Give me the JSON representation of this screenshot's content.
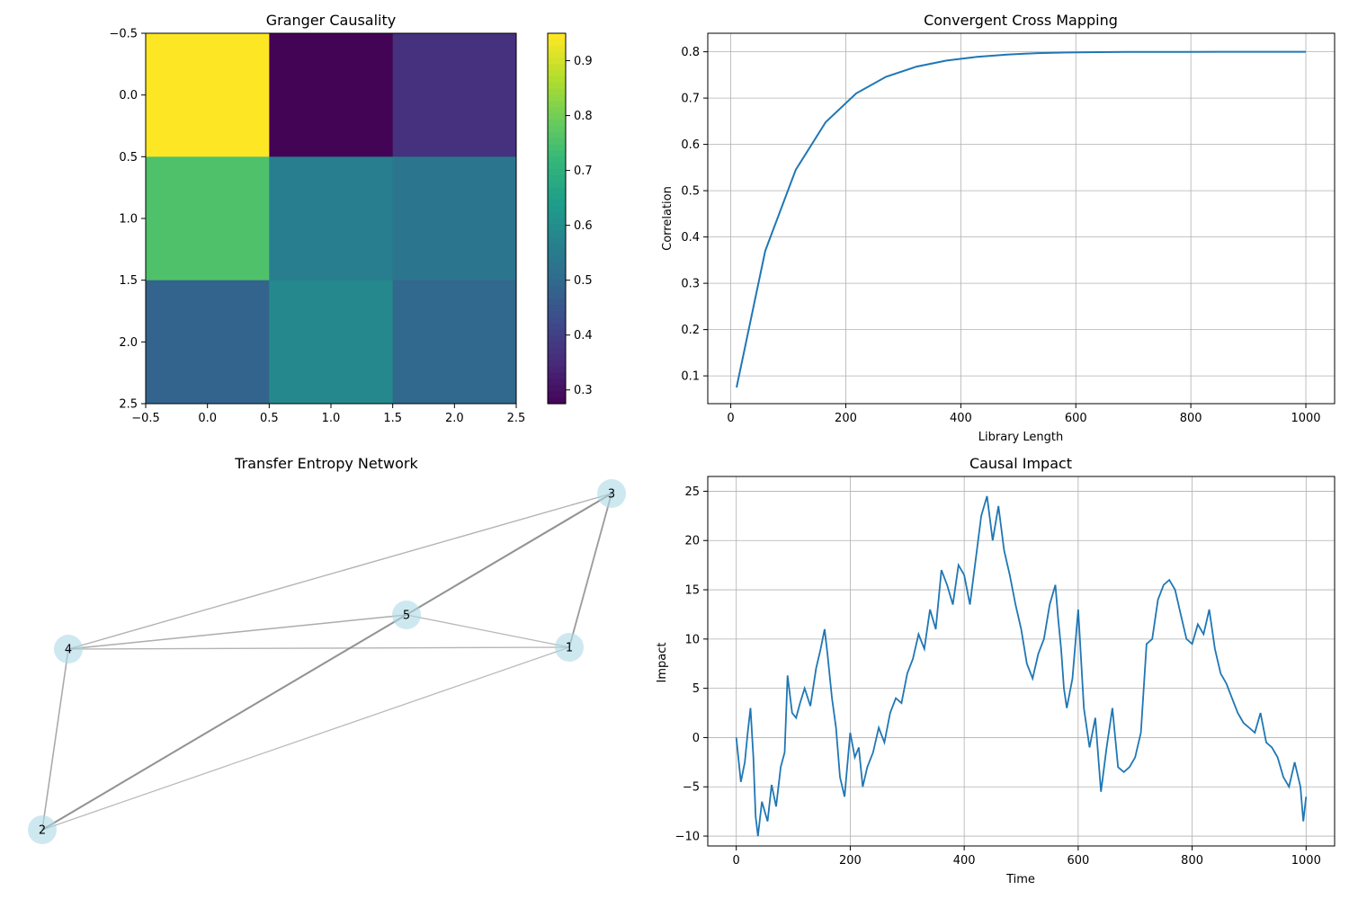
{
  "chart_data": [
    {
      "type": "heatmap",
      "title": "Granger Causality",
      "xlim": [
        -0.5,
        2.5
      ],
      "ylim": [
        2.5,
        -0.5
      ],
      "xticks": [
        "−0.5",
        "0.0",
        "0.5",
        "1.0",
        "1.5",
        "2.0",
        "2.5"
      ],
      "yticks": [
        "−0.5",
        "0.0",
        "0.5",
        "1.0",
        "1.5",
        "2.0",
        "2.5"
      ],
      "colormap": "viridis",
      "colorbar": {
        "min": 0.275,
        "max": 0.95,
        "ticks": [
          "0.3",
          "0.4",
          "0.5",
          "0.6",
          "0.7",
          "0.8",
          "0.9"
        ]
      },
      "values": [
        [
          0.95,
          0.28,
          0.37
        ],
        [
          0.76,
          0.56,
          0.54
        ],
        [
          0.49,
          0.59,
          0.5
        ]
      ]
    },
    {
      "type": "line",
      "title": "Convergent Cross Mapping",
      "xlabel": "Library Length",
      "ylabel": "Correlation",
      "xlim": [
        -40,
        1050
      ],
      "ylim": [
        0.04,
        0.84
      ],
      "grid": true,
      "xticks": [
        "0",
        "200",
        "400",
        "600",
        "800",
        "1000"
      ],
      "yticks": [
        "0.1",
        "0.2",
        "0.3",
        "0.4",
        "0.5",
        "0.6",
        "0.7",
        "0.8"
      ],
      "color": "#1f77b4",
      "x": [
        10,
        60,
        113,
        165,
        218,
        270,
        323,
        375,
        428,
        480,
        533,
        585,
        638,
        690,
        743,
        795,
        848,
        900,
        953,
        1000
      ],
      "y": [
        0.075,
        0.37,
        0.545,
        0.648,
        0.71,
        0.746,
        0.768,
        0.781,
        0.789,
        0.794,
        0.797,
        0.7985,
        0.7993,
        0.7996,
        0.7998,
        0.7999,
        0.8,
        0.8,
        0.8,
        0.8
      ]
    },
    {
      "type": "network",
      "title": "Transfer Entropy Network",
      "nodes": [
        {
          "id": "1"
        },
        {
          "id": "2"
        },
        {
          "id": "3"
        },
        {
          "id": "4"
        },
        {
          "id": "5"
        }
      ],
      "edges": [
        {
          "source": "2",
          "target": "3",
          "weight": 0.9
        },
        {
          "source": "1",
          "target": "3",
          "weight": 0.75
        },
        {
          "source": "2",
          "target": "4",
          "weight": 0.55
        },
        {
          "source": "4",
          "target": "5",
          "weight": 0.5
        },
        {
          "source": "4",
          "target": "3",
          "weight": 0.4
        },
        {
          "source": "4",
          "target": "1",
          "weight": 0.4
        },
        {
          "source": "5",
          "target": "1",
          "weight": 0.35
        },
        {
          "source": "2",
          "target": "1",
          "weight": 0.3
        }
      ],
      "node_color": "#add8e6",
      "edge_color": "#808080"
    },
    {
      "type": "line",
      "title": "Causal Impact",
      "xlabel": "Time",
      "ylabel": "Impact",
      "xlim": [
        -50,
        1050
      ],
      "ylim": [
        -11,
        26.5
      ],
      "grid": true,
      "xticks": [
        "0",
        "200",
        "400",
        "600",
        "800",
        "1000"
      ],
      "yticks": [
        "−10",
        "−5",
        "0",
        "5",
        "10",
        "15",
        "20",
        "25"
      ],
      "color": "#1f77b4",
      "x": [
        0,
        8,
        15,
        20,
        25,
        30,
        34,
        38,
        45,
        55,
        62,
        70,
        78,
        85,
        90,
        98,
        105,
        112,
        120,
        130,
        140,
        148,
        155,
        160,
        168,
        175,
        182,
        190,
        200,
        208,
        215,
        222,
        230,
        240,
        250,
        260,
        270,
        280,
        290,
        300,
        310,
        320,
        330,
        340,
        350,
        360,
        370,
        380,
        390,
        400,
        410,
        420,
        430,
        440,
        450,
        460,
        470,
        480,
        490,
        500,
        510,
        520,
        530,
        540,
        550,
        560,
        565,
        570,
        575,
        580,
        590,
        600,
        610,
        620,
        630,
        640,
        650,
        660,
        670,
        680,
        690,
        700,
        710,
        720,
        730,
        740,
        750,
        760,
        770,
        780,
        790,
        800,
        810,
        820,
        830,
        840,
        850,
        860,
        870,
        880,
        890,
        900,
        910,
        920,
        930,
        940,
        950,
        960,
        970,
        980,
        990,
        995,
        1000
      ],
      "y": [
        0,
        -4.5,
        -2.5,
        0.5,
        3.0,
        -2.0,
        -8.0,
        -10.0,
        -6.5,
        -8.5,
        -4.8,
        -7.0,
        -3.0,
        -1.5,
        6.3,
        2.5,
        2.0,
        3.5,
        5.0,
        3.2,
        7.0,
        9.0,
        11.0,
        8.5,
        4.0,
        1.0,
        -4.0,
        -6.0,
        0.5,
        -2.0,
        -1.0,
        -5.0,
        -3.0,
        -1.5,
        1.0,
        -0.5,
        2.5,
        4.0,
        3.5,
        6.5,
        8.0,
        10.5,
        9.0,
        13.0,
        11.0,
        17.0,
        15.5,
        13.5,
        17.5,
        16.5,
        13.5,
        18.0,
        22.5,
        24.5,
        20.0,
        23.5,
        19.0,
        16.5,
        13.5,
        11.0,
        7.5,
        6.0,
        8.5,
        10.0,
        13.5,
        15.5,
        12.0,
        9.0,
        5.0,
        3.0,
        6.0,
        13.0,
        3.0,
        -1.0,
        2.0,
        -5.5,
        -1.0,
        3.0,
        -3.0,
        -3.5,
        -3.0,
        -2.0,
        0.5,
        9.5,
        10.0,
        14.0,
        15.5,
        16.0,
        15.0,
        12.5,
        10.0,
        9.5,
        11.5,
        10.5,
        13.0,
        9.0,
        6.5,
        5.5,
        4.0,
        2.5,
        1.5,
        1.0,
        0.5,
        2.5,
        -0.5,
        -1.0,
        -2.0,
        -4.0,
        -5.0,
        -2.5,
        -5.0,
        -8.5,
        -6.0
      ]
    }
  ]
}
